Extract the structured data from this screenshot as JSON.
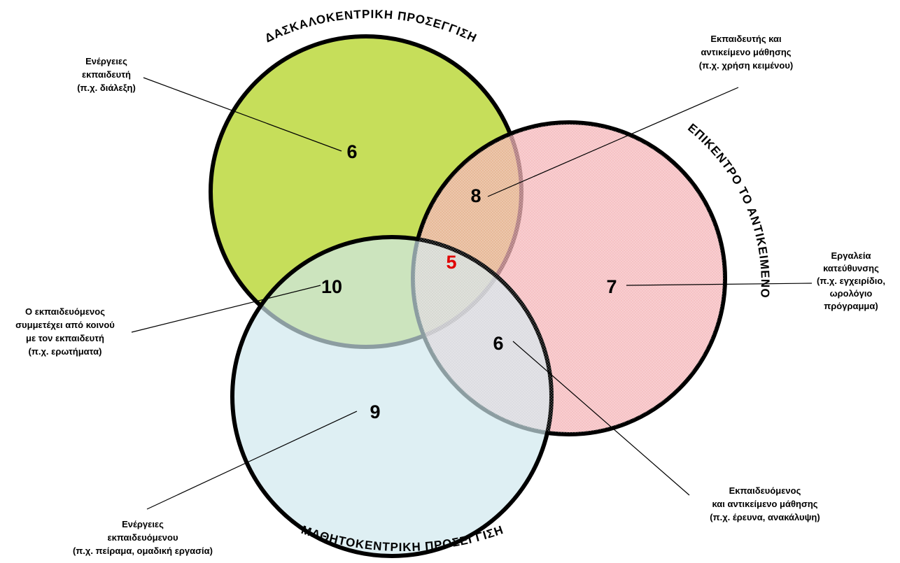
{
  "circles": {
    "teacher": {
      "title": "ΔΑΣΚΑΛΟΚΕΝΤΡΙΚΗ ΠΡΟΣΕΓΓΙΣΗ",
      "color": "#c6de5a"
    },
    "object": {
      "title": "ΕΠΙΚΕΝΤΡΟ ΤΟ ΑΝΤΙΚΕΙΜΕΝΟ",
      "color": "#f2a8ac"
    },
    "learner": {
      "title": "ΜΑΘΗΤΟΚΕΝΤΡΙΚΗ ΠΡΟΣΕΓΓΙΣΗ",
      "color": "#cfe7ee"
    }
  },
  "regions": {
    "teacher_only": "6",
    "teacher_object": "8",
    "center": "5",
    "object_only": "7",
    "teacher_learner": "10",
    "learner_object": "6",
    "learner_only": "9"
  },
  "labels": {
    "teacher_only": [
      "Ενέργειες",
      "εκπαιδευτή",
      "(π.χ. διάλεξη)"
    ],
    "teacher_object": [
      "Εκπαιδευτής και",
      "αντικείμενο μάθησης",
      "(π.χ. χρήση κειμένου)"
    ],
    "object_only": [
      "Εργαλεία",
      "κατεύθυνσης",
      "(π.χ. εγχειρίδιο,",
      "ωρολόγιο",
      "πρόγραμμα)"
    ],
    "teacher_learner": [
      "Ο εκπαιδευόμενος",
      "συμμετέχει από κοινού",
      "με τον εκπαιδευτή",
      "(π.χ. ερωτήματα)"
    ],
    "learner_object": [
      "Εκπαιδευόμενος",
      "και αντικείμενο μάθησης",
      "(π.χ. έρευνα, ανακάλυψη)"
    ],
    "learner_only": [
      "Ενέργειες",
      "εκπαιδευόμενου",
      "(π.χ. πείραμα, ομαδική εργασία)"
    ]
  }
}
